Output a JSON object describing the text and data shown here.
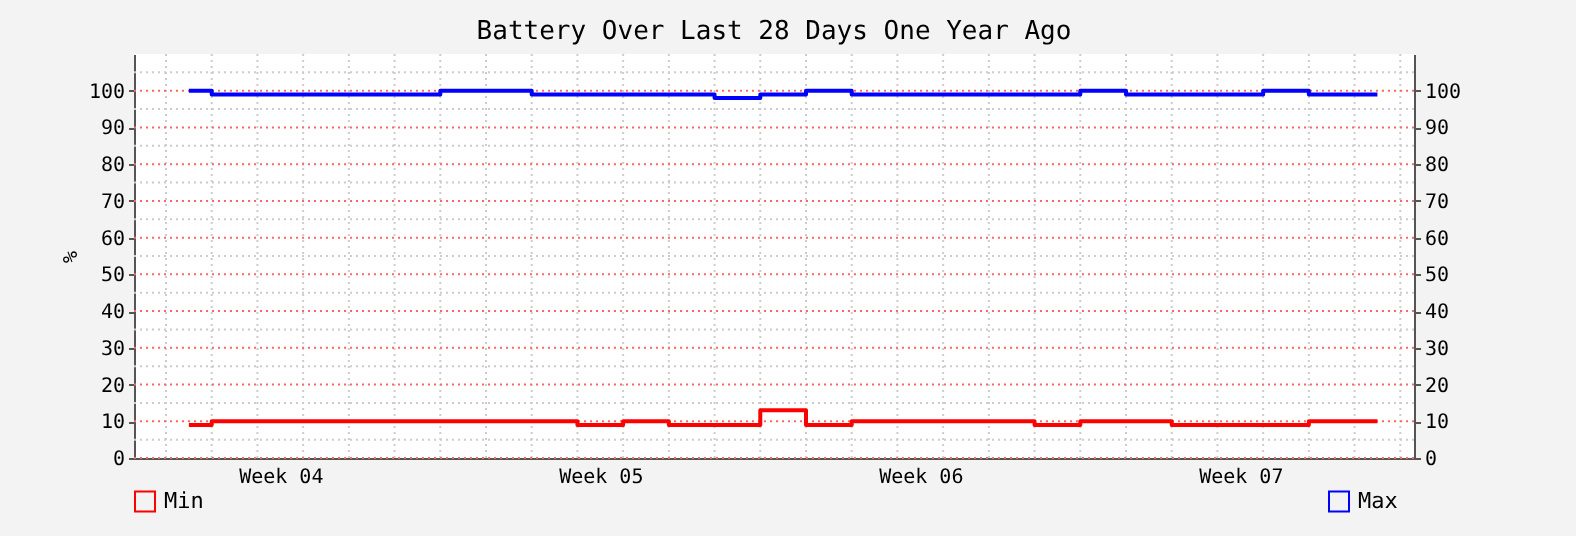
{
  "chart_data": {
    "type": "step",
    "title": "Battery Over Last 28 Days One Year Ago",
    "ylabel": "%",
    "categories": [
      null,
      null,
      "Week 04",
      null,
      null,
      null,
      null,
      null,
      null,
      "Week 05",
      null,
      null,
      null,
      null,
      null,
      null,
      "Week 06",
      null,
      null,
      null,
      null,
      null,
      null,
      "Week 07",
      null,
      null,
      null
    ],
    "series": [
      {
        "name": "Min",
        "color": "#ff0000",
        "values": [
          9,
          10,
          10,
          10,
          10,
          10,
          10,
          10,
          10,
          9,
          10,
          9,
          9,
          13,
          9,
          10,
          10,
          10,
          10,
          9,
          10,
          10,
          9,
          9,
          9,
          10,
          10
        ]
      },
      {
        "name": "Max",
        "color": "#0000ff",
        "values": [
          100,
          99,
          99,
          99,
          99,
          99,
          100,
          100,
          99,
          99,
          99,
          99,
          98,
          99,
          100,
          99,
          99,
          99,
          99,
          99,
          100,
          99,
          99,
          99,
          100,
          99,
          99
        ]
      }
    ],
    "ylim": [
      0,
      110
    ],
    "yticks": [
      0,
      10,
      20,
      30,
      40,
      50,
      60,
      70,
      80,
      90,
      100,
      {
        "value": 5,
        "label": null
      },
      {
        "value": 15,
        "label": null
      },
      {
        "value": 25,
        "label": null
      },
      {
        "value": 35,
        "label": null
      },
      {
        "value": 45,
        "label": null
      },
      {
        "value": 55,
        "label": null
      },
      {
        "value": 65,
        "label": null
      },
      {
        "value": 75,
        "label": null
      },
      {
        "value": 85,
        "label": null
      },
      {
        "value": 95,
        "label": null
      },
      {
        "value": 105,
        "label": null
      }
    ],
    "y2lim": [
      0,
      110
    ],
    "y2ticks": [
      0,
      10,
      20,
      30,
      40,
      50,
      60,
      70,
      80,
      90,
      100
    ],
    "grid": true,
    "legend": "bottom",
    "line_style": "solid"
  }
}
